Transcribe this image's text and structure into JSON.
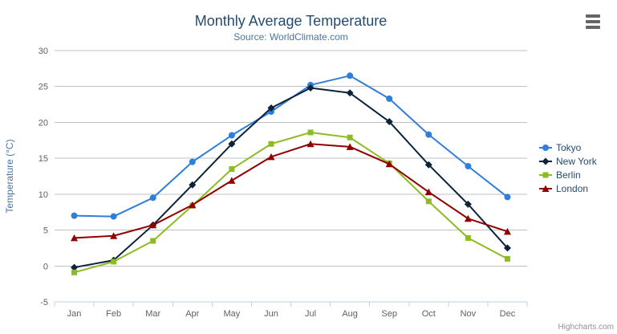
{
  "chart_data": {
    "type": "line",
    "title": "Monthly Average Temperature",
    "subtitle": "Source: WorldClimate.com",
    "xlabel": "",
    "ylabel": "Temperature (°C)",
    "ylim": [
      -5,
      30
    ],
    "yticks": [
      -5,
      0,
      5,
      10,
      15,
      20,
      25,
      30
    ],
    "grid": true,
    "legend_position": "right",
    "categories": [
      "Jan",
      "Feb",
      "Mar",
      "Apr",
      "May",
      "Jun",
      "Jul",
      "Aug",
      "Sep",
      "Oct",
      "Nov",
      "Dec"
    ],
    "series": [
      {
        "name": "Tokyo",
        "color": "#2f7ed8",
        "marker": "circle",
        "values": [
          7.0,
          6.9,
          9.5,
          14.5,
          18.2,
          21.5,
          25.2,
          26.5,
          23.3,
          18.3,
          13.9,
          9.6
        ]
      },
      {
        "name": "New York",
        "color": "#0d233a",
        "marker": "diamond",
        "values": [
          -0.2,
          0.8,
          5.7,
          11.3,
          17.0,
          22.0,
          24.8,
          24.1,
          20.1,
          14.1,
          8.6,
          2.5
        ]
      },
      {
        "name": "Berlin",
        "color": "#8bbc21",
        "marker": "square",
        "values": [
          -0.9,
          0.6,
          3.5,
          8.4,
          13.5,
          17.0,
          18.6,
          17.9,
          14.3,
          9.0,
          3.9,
          1.0
        ]
      },
      {
        "name": "London",
        "color": "#910000",
        "marker": "triangle",
        "values": [
          3.9,
          4.2,
          5.7,
          8.5,
          11.9,
          15.2,
          17.0,
          16.6,
          14.2,
          10.3,
          6.6,
          4.8
        ]
      }
    ]
  },
  "colors": {
    "background": "#ffffff",
    "grid": "#c0c0c0",
    "axis_line": "#c0d0e0",
    "title": "#274b6d",
    "subtitle": "#4d759e",
    "axis_label": "#606060",
    "axis_title": "#4d759e",
    "legend_text": "#274b6d",
    "credits": "#909090",
    "menu_icon": "#666666"
  },
  "menu": {
    "icon": "hamburger-icon"
  },
  "credits": {
    "text": "Highcharts.com"
  }
}
